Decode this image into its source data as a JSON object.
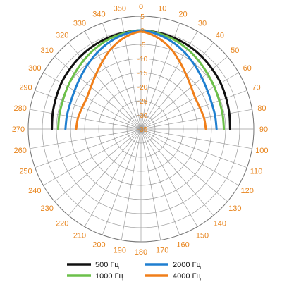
{
  "chart_data": {
    "type": "line",
    "subtype": "polar",
    "angle_ticks": [
      "0",
      "10",
      "20",
      "30",
      "40",
      "50",
      "60",
      "70",
      "80",
      "90",
      "100",
      "110",
      "120",
      "130",
      "140",
      "150",
      "160",
      "170",
      "180",
      "190",
      "200",
      "210",
      "220",
      "230",
      "240",
      "250",
      "260",
      "270",
      "280",
      "290",
      "300",
      "310",
      "320",
      "330",
      "340",
      "350"
    ],
    "angle_unit": "degrees",
    "radial_ticks": [
      "5",
      "0",
      "-5",
      "-10",
      "-15",
      "-20",
      "-25",
      "-30",
      "-35"
    ],
    "radial_range": [
      -35,
      5
    ],
    "grid": true,
    "legend_position": "bottom",
    "series": [
      {
        "name": "500 Гц",
        "color": "#111111",
        "angles": [
          0,
          10,
          20,
          30,
          40,
          50,
          60,
          70,
          80,
          90,
          270,
          280,
          290,
          300,
          310,
          320,
          330,
          340,
          350
        ],
        "values": [
          0,
          -0.3,
          -0.6,
          -1.0,
          -1.5,
          -2.0,
          -2.4,
          -2.9,
          -3.2,
          -3.4,
          -3.4,
          -3.2,
          -2.9,
          -2.4,
          -2.0,
          -1.5,
          -1.0,
          -0.6,
          -0.3
        ]
      },
      {
        "name": "1000 Гц",
        "color": "#6cc04a",
        "angles": [
          0,
          10,
          20,
          30,
          40,
          50,
          60,
          70,
          80,
          90,
          270,
          280,
          290,
          300,
          310,
          320,
          330,
          340,
          350
        ],
        "values": [
          0,
          -0.5,
          -1.2,
          -2.2,
          -3.3,
          -4.3,
          -5.0,
          -5.5,
          -5.6,
          -5.6,
          -5.6,
          -5.6,
          -5.5,
          -5.0,
          -4.3,
          -3.3,
          -2.2,
          -1.2,
          -0.5
        ]
      },
      {
        "name": "2000 Гц",
        "color": "#1f7fd0",
        "angles": [
          0,
          10,
          20,
          30,
          40,
          50,
          60,
          70,
          80,
          90,
          270,
          280,
          290,
          300,
          310,
          320,
          330,
          340,
          350
        ],
        "values": [
          0,
          -0.9,
          -2.2,
          -3.8,
          -5.4,
          -6.8,
          -7.8,
          -8.3,
          -8.3,
          -8.2,
          -8.2,
          -8.3,
          -8.3,
          -7.8,
          -6.8,
          -5.4,
          -3.8,
          -2.2,
          -0.9
        ]
      },
      {
        "name": "4000 Гц",
        "color": "#f07f1a",
        "angles": [
          0,
          10,
          20,
          30,
          40,
          50,
          60,
          70,
          80,
          90,
          270,
          280,
          290,
          300,
          310,
          320,
          330,
          340,
          350
        ],
        "values": [
          -0.5,
          -2.0,
          -4.5,
          -7.5,
          -10.0,
          -11.8,
          -12.8,
          -12.8,
          -12.3,
          -12.0,
          -12.0,
          -12.3,
          -12.8,
          -12.8,
          -11.8,
          -10.0,
          -7.5,
          -4.5,
          -2.0
        ]
      }
    ]
  },
  "legend": [
    {
      "label": "500 Гц",
      "color": "#111111"
    },
    {
      "label": "2000 Гц",
      "color": "#1f7fd0"
    },
    {
      "label": "1000 Гц",
      "color": "#6cc04a"
    },
    {
      "label": "4000 Гц",
      "color": "#f07f1a"
    }
  ]
}
